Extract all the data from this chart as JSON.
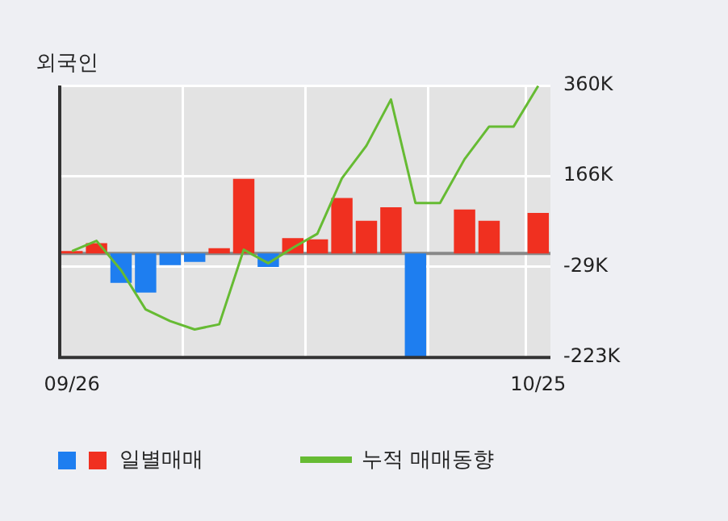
{
  "chart_data": {
    "type": "bar",
    "title": "외국인",
    "categories": [
      "09/26",
      null,
      null,
      null,
      null,
      null,
      null,
      null,
      null,
      null,
      null,
      null,
      null,
      null,
      null,
      null,
      null,
      null,
      null,
      "10/25"
    ],
    "series": [
      {
        "name": "일별매매",
        "colors": [
          "#f03020",
          "#f03020",
          "#1e7ef0",
          "#1e7ef0",
          "#1e7ef0",
          "#1e7ef0",
          "#f03020",
          "#f03020",
          "#1e7ef0",
          "#f03020",
          "#f03020",
          "#f03020",
          "#f03020",
          "#f03020",
          "#1e7ef0",
          "#f03020",
          "#f03020",
          "#f03020",
          "#f03020",
          "#f03020"
        ],
        "values": [
          5,
          22,
          -63,
          -84,
          -25,
          -18,
          11,
          160,
          -29,
          33,
          30,
          119,
          70,
          99,
          -222,
          0,
          94,
          70,
          0,
          87
        ]
      },
      {
        "name": "누적 매매동향",
        "type": "line",
        "color": "#66bb33",
        "values": [
          5,
          27,
          -36,
          -120,
          -145,
          -163,
          -152,
          8,
          -21,
          12,
          42,
          161,
          231,
          330,
          108,
          108,
          202,
          272,
          272,
          359
        ]
      }
    ],
    "ylim": [
      -223,
      360
    ],
    "yticks": [
      {
        "value": -223,
        "label": "-223K"
      },
      {
        "value": -29,
        "label": "-29K"
      },
      {
        "value": 166,
        "label": "166K"
      },
      {
        "value": 360,
        "label": "360K"
      }
    ],
    "ref_lines": [
      {
        "axis": "y",
        "value": 0,
        "color": "#888888"
      }
    ],
    "grid": true,
    "legend": "bottom",
    "marker": "none"
  }
}
